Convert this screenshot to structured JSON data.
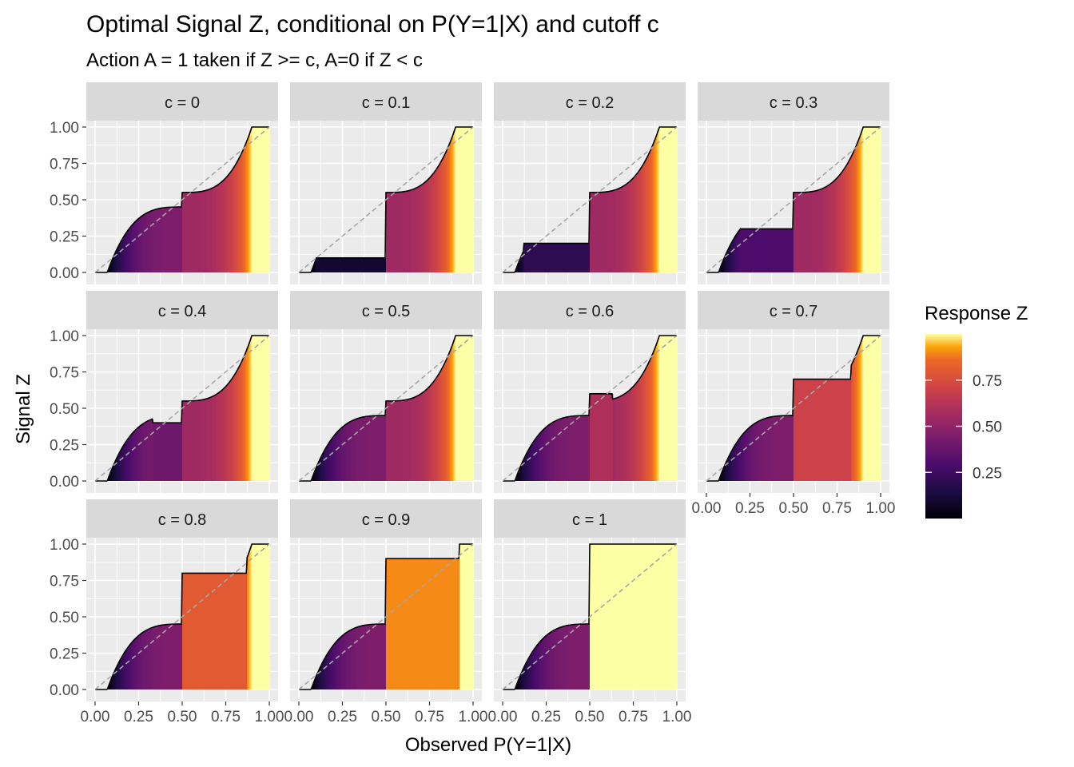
{
  "title": "Optimal Signal Z, conditional on P(Y=1|X) and cutoff c",
  "subtitle": "Action A = 1 taken if Z >= c, A=0 if Z < c",
  "chart_data": {
    "type": "area",
    "layout": "facet-wrap",
    "xlabel": "Observed P(Y=1|X)",
    "ylabel": "Signal Z",
    "xlim": [
      0,
      1
    ],
    "ylim": [
      0,
      1
    ],
    "x_ticks": [
      "0.00",
      "0.25",
      "0.50",
      "0.75",
      "1.00"
    ],
    "y_ticks": [
      "0.00",
      "0.25",
      "0.50",
      "0.75",
      "1.00"
    ],
    "grid": true,
    "reference_line": "identity (dashed grey)",
    "fill_palette": "inferno",
    "legend": {
      "title": "Response Z",
      "position": "right",
      "ticks": [
        "0.25",
        "0.50",
        "0.75"
      ],
      "range": [
        0,
        1
      ]
    },
    "panels": [
      {
        "label": "c = 0",
        "c": 0,
        "break_lo": 0.52,
        "break_hi": 0.52,
        "flat_low": 0,
        "flat_high": 0.55
      },
      {
        "label": "c = 0.1",
        "c": 0.1,
        "break_lo": 0.1,
        "break_hi": 0.52,
        "flat_low": 0.1,
        "flat_high": 0.55
      },
      {
        "label": "c = 0.2",
        "c": 0.2,
        "break_lo": 0.12,
        "break_hi": 0.52,
        "flat_low": 0.2,
        "flat_high": 0.55
      },
      {
        "label": "c = 0.3",
        "c": 0.3,
        "break_lo": 0.2,
        "break_hi": 0.5,
        "flat_low": 0.3,
        "flat_high": 0.55
      },
      {
        "label": "c = 0.4",
        "c": 0.4,
        "break_lo": 0.33,
        "break_hi": 0.5,
        "flat_low": 0.4,
        "flat_high": 0.55
      },
      {
        "label": "c = 0.5",
        "c": 0.5,
        "break_lo": 0.5,
        "break_hi": 0.5,
        "flat_low": 0.45,
        "flat_high": 0.55
      },
      {
        "label": "c = 0.6",
        "c": 0.6,
        "break_lo": 0.5,
        "break_hi": 0.63,
        "flat_low": 0.45,
        "flat_high": 0.6
      },
      {
        "label": "c = 0.7",
        "c": 0.7,
        "break_lo": 0.5,
        "break_hi": 0.83,
        "flat_low": 0.45,
        "flat_high": 0.7
      },
      {
        "label": "c = 0.8",
        "c": 0.8,
        "break_lo": 0.5,
        "break_hi": 0.87,
        "flat_low": 0.45,
        "flat_high": 0.8
      },
      {
        "label": "c = 0.9",
        "c": 0.9,
        "break_lo": 0.5,
        "break_hi": 0.92,
        "flat_low": 0.45,
        "flat_high": 0.9
      },
      {
        "label": "c = 1",
        "c": 1,
        "break_lo": 0.5,
        "break_hi": 1.0,
        "flat_low": 0.45,
        "flat_high": 1.0
      }
    ]
  }
}
